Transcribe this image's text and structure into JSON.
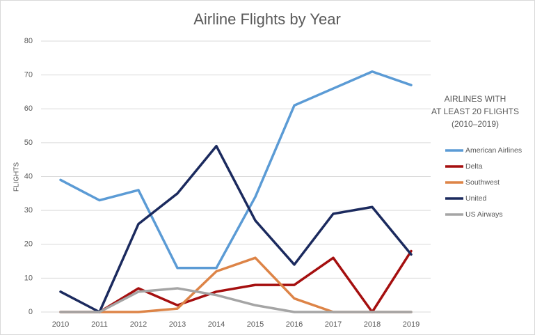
{
  "chart_data": {
    "type": "line",
    "title": "Airline Flights by Year",
    "y_label": "FLIGHTS",
    "legend_title": [
      "AIRLINES WITH",
      "AT LEAST 20 FLIGHTS",
      "(2010–2019)"
    ],
    "legend": "right",
    "categories": [
      "2010",
      "2011",
      "2012",
      "2013",
      "2014",
      "2015",
      "2016",
      "2017",
      "2018",
      "2019"
    ],
    "series": [
      {
        "name": "American Airlines",
        "color": "#5b9bd5",
        "values": [
          39,
          33,
          36,
          13,
          13,
          34,
          61,
          66,
          71,
          67
        ]
      },
      {
        "name": "Delta",
        "color": "#a50f0f",
        "values": [
          0,
          0,
          7,
          2,
          6,
          8,
          8,
          16,
          0,
          18
        ]
      },
      {
        "name": "Southwest",
        "color": "#dd8447",
        "values": [
          0,
          0,
          0,
          1,
          12,
          16,
          4,
          0,
          0,
          0
        ]
      },
      {
        "name": "United",
        "color": "#1b2a5e",
        "values": [
          6,
          0,
          26,
          35,
          49,
          27,
          14,
          29,
          31,
          17
        ]
      },
      {
        "name": "US Airways",
        "color": "#a5a5a5",
        "values": [
          0,
          0,
          6,
          7,
          5,
          2,
          0,
          0,
          0,
          0
        ]
      }
    ],
    "ylim": [
      0,
      80
    ],
    "yticks": [
      0,
      10,
      20,
      30,
      40,
      50,
      60,
      70,
      80
    ],
    "grid": true
  }
}
